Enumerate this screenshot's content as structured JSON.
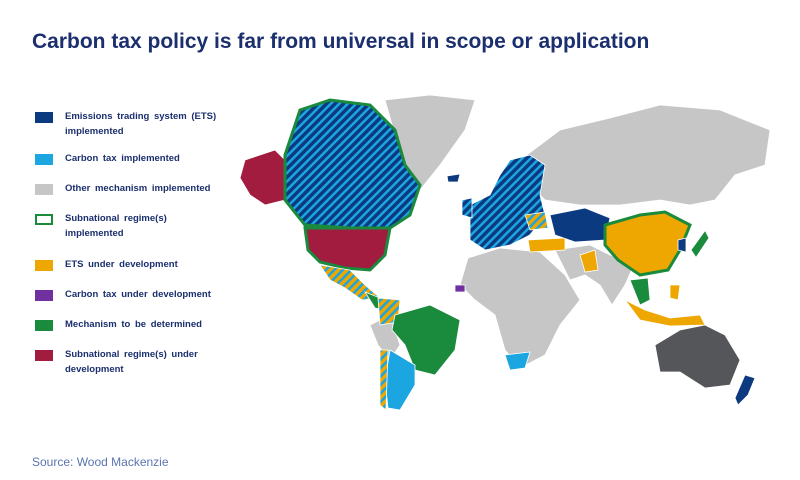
{
  "header": {
    "title": "Carbon tax policy is far from universal in scope or application"
  },
  "legend": {
    "items": [
      {
        "label": "Emissions trading system (ETS) implemented",
        "color": "#0b3a80",
        "swatch": "fill"
      },
      {
        "label": "Carbon tax implemented",
        "color": "#1ba5e1",
        "swatch": "fill"
      },
      {
        "label": "Other mechanism implemented",
        "color": "#c6c6c6",
        "swatch": "fill"
      },
      {
        "label": "Subnational regime(s) implemented",
        "color": "#1a8a3c",
        "swatch": "outline"
      },
      {
        "label": "ETS under development",
        "color": "#eea700",
        "swatch": "fill"
      },
      {
        "label": "Carbon tax under development",
        "color": "#7030a0",
        "swatch": "fill"
      },
      {
        "label": "Mechanism to be determined",
        "color": "#1a8a3c",
        "swatch": "fill"
      },
      {
        "label": "Subnational regime(s) under development",
        "color": "#a11c3f",
        "swatch": "fill"
      }
    ]
  },
  "source": "Source: Wood Mackenzie"
}
